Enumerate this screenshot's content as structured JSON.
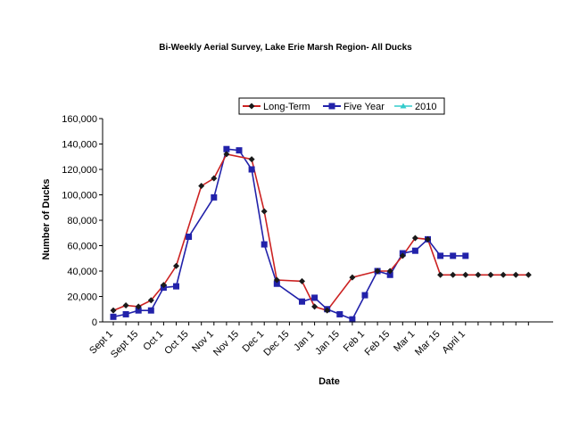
{
  "chart_data": {
    "type": "line",
    "title": "Bi-Weekly Aerial Survey, Lake Erie Marsh Region- All Ducks",
    "xlabel": "Date",
    "ylabel": "Number of Ducks",
    "ylim": [
      0,
      160000
    ],
    "yticks": [
      0,
      20000,
      40000,
      60000,
      80000,
      100000,
      120000,
      140000,
      160000
    ],
    "ytick_labels": [
      "0",
      "20,000",
      "40,000",
      "60,000",
      "80,000",
      "100,000",
      "120,000",
      "140,000",
      "160,000"
    ],
    "categories": [
      "Sept 1",
      "Sept 15",
      "Oct 1",
      "Oct 15",
      "Nov 1",
      "Nov 15",
      "Dec 1",
      "Dec 15",
      "Jan 1",
      "Jan 15",
      "Feb 1",
      "Feb 15",
      "Mar 1",
      "Mar 15",
      "April 1"
    ],
    "x_points": 34,
    "legend_position": "top-right",
    "series": [
      {
        "name": "Long-Term",
        "color": "#cc2222",
        "marker_color": "#1a1a1a",
        "marker": "diamond",
        "x": [
          0,
          1,
          2,
          3,
          4,
          5,
          7,
          8,
          9,
          11,
          12,
          13,
          15,
          16,
          17,
          19,
          21,
          22,
          23,
          24,
          25,
          26,
          27,
          28,
          29,
          30,
          31,
          32,
          33
        ],
        "values": [
          9000,
          13000,
          12000,
          17000,
          29000,
          44000,
          107000,
          113000,
          132000,
          128000,
          87000,
          33000,
          32000,
          12000,
          9000,
          35000,
          40000,
          40000,
          52000,
          66000,
          65000,
          37000,
          37000,
          37000,
          37000,
          37000,
          37000,
          37000,
          37000
        ]
      },
      {
        "name": "Five Year",
        "color": "#2222aa",
        "marker_color": "#2222aa",
        "marker": "square",
        "x": [
          0,
          1,
          2,
          3,
          4,
          5,
          6,
          8,
          9,
          10,
          11,
          12,
          13,
          15,
          16,
          17,
          18,
          19,
          20,
          21,
          22,
          23,
          24,
          25,
          26,
          27,
          28
        ],
        "values": [
          4000,
          6000,
          9000,
          9000,
          27000,
          28000,
          67000,
          98000,
          136000,
          135000,
          120000,
          61000,
          30000,
          16000,
          19000,
          10000,
          6000,
          2000,
          21000,
          40000,
          37000,
          54000,
          56000,
          65000,
          52000,
          52000,
          52000
        ]
      },
      {
        "name": "2010",
        "color": "#33cccc",
        "marker_color": "#33cccc",
        "marker": "triangle",
        "x": [],
        "values": []
      }
    ]
  }
}
